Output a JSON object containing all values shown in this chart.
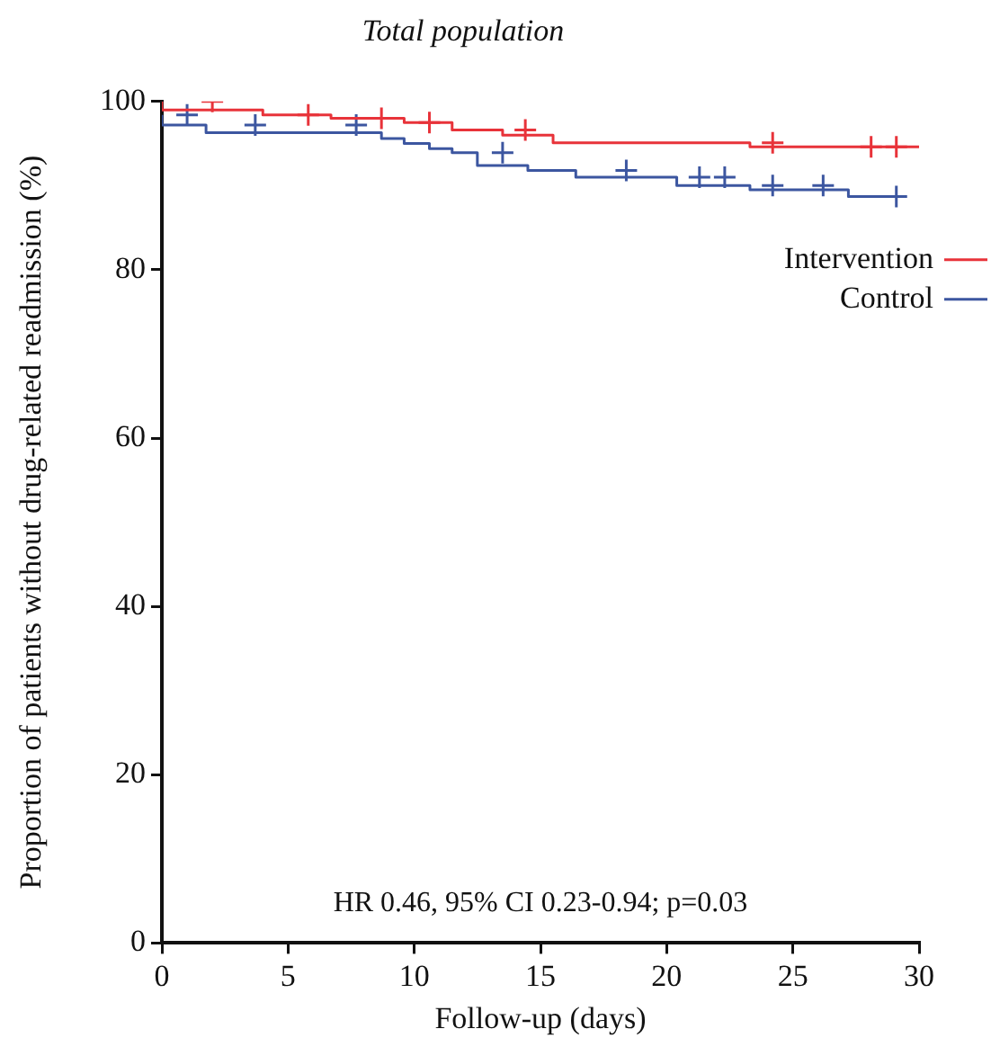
{
  "chart_data": {
    "type": "step",
    "title": "Total population",
    "xlabel": "Follow-up (days)",
    "ylabel": "Proportion of patients without drug-related readmission (%)",
    "xlim": [
      0,
      30
    ],
    "xticks": [
      0,
      5,
      10,
      15,
      20,
      25,
      30
    ],
    "ylim": [
      0,
      100
    ],
    "yticks": [
      0,
      20,
      40,
      60,
      80,
      100
    ],
    "grid": false,
    "legend": "right",
    "line_style": "solid",
    "annotations": [
      "HR 0.46, 95% CI 0.23-0.94; p=0.03"
    ],
    "series": [
      {
        "name": "Intervention",
        "color": "#e8333a",
        "x": [
          0,
          4,
          6.7,
          9.6,
          11.5,
          13.5,
          15.5,
          23.3,
          25.2,
          30
        ],
        "values": [
          100,
          99,
          98.4,
          98,
          97.5,
          96.6,
          96,
          95.1,
          94.6,
          94.6
        ]
      },
      {
        "name": "Control",
        "color": "#3c56a0",
        "x": [
          0,
          1.75,
          8.7,
          9.6,
          10.6,
          11.5,
          12.5,
          14.5,
          16.4,
          20.4,
          23.3,
          27.2,
          29.1
        ],
        "values": [
          98.4,
          97.2,
          96.3,
          95.6,
          95,
          94.4,
          93.9,
          92.4,
          91.8,
          91,
          90,
          89.5,
          88.7
        ]
      },
      {
        "type": "scatter",
        "marker": "cross",
        "color": "#e8333a",
        "x": [
          2,
          5.8,
          8.7,
          10.6,
          14.4,
          24.2,
          28.1,
          29.1
        ],
        "values": [
          100,
          98.4,
          98,
          97.5,
          96.6,
          95.1,
          94.6,
          94.6
        ]
      },
      {
        "type": "scatter",
        "marker": "cross",
        "color": "#3c56a0",
        "x": [
          1,
          3.7,
          7.7,
          13.5,
          18.4,
          21.3,
          22.3,
          24.2,
          26.2,
          29.1
        ],
        "values": [
          98.4,
          97.2,
          97.2,
          93.9,
          91.8,
          91,
          91,
          90,
          90,
          88.7
        ]
      }
    ]
  }
}
